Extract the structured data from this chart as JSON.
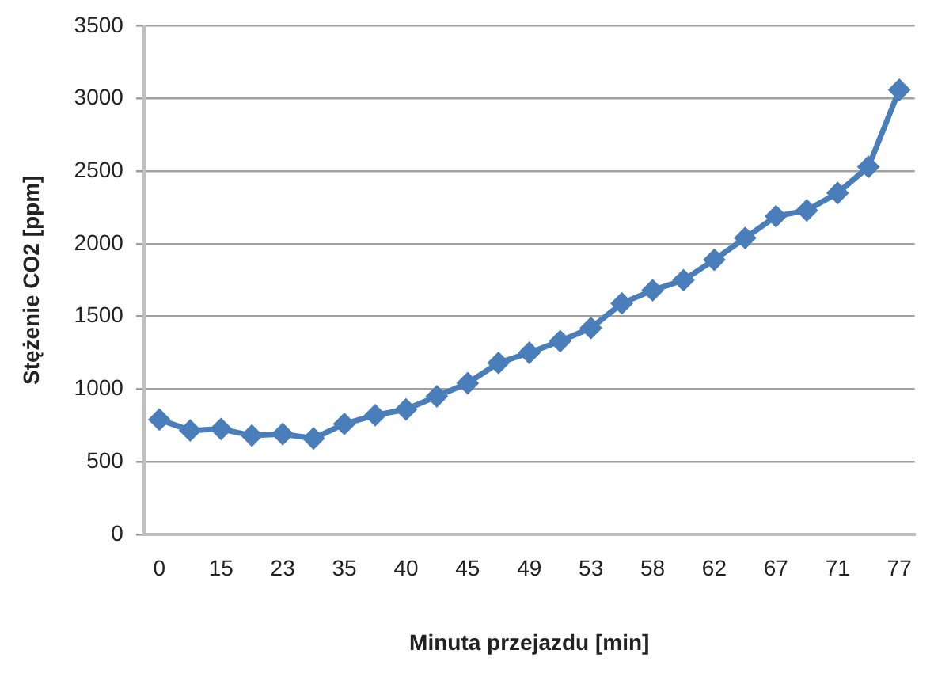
{
  "chart_data": {
    "type": "line",
    "xlabel": "Minuta przejazdu [min]",
    "ylabel": "Stężenie CO2 [ppm]",
    "categories": [
      "0",
      null,
      "15",
      null,
      "23",
      null,
      "35",
      null,
      "40",
      null,
      "45",
      null,
      "49",
      null,
      "53",
      null,
      "58",
      null,
      "62",
      null,
      "67",
      null,
      "71",
      null,
      "77"
    ],
    "series": [
      {
        "color": "#4a7ebb",
        "values": [
          790,
          715,
          725,
          680,
          690,
          660,
          760,
          820,
          860,
          950,
          1040,
          1180,
          1250,
          1330,
          1420,
          1590,
          1680,
          1750,
          1890,
          2040,
          2190,
          2230,
          2350,
          2530,
          3060
        ]
      }
    ],
    "ylim": [
      0,
      3500
    ],
    "yticks": [
      0,
      500,
      1000,
      1500,
      2000,
      2500,
      3000,
      3500
    ],
    "grid": "y",
    "legend": false,
    "marker": "diamond",
    "line_style": "solid"
  }
}
